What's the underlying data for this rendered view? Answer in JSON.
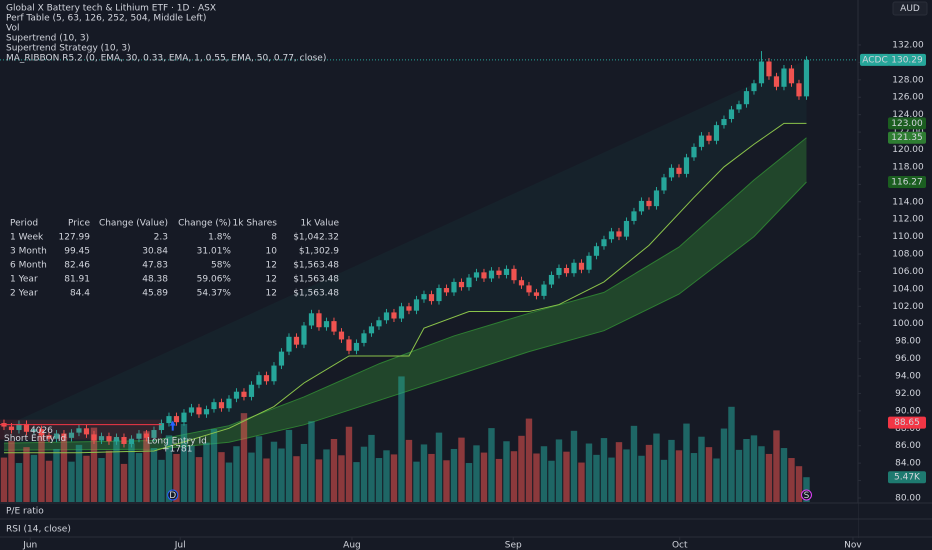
{
  "header": {
    "title": "Global X Battery tech & Lithium ETF · 1D · ASX",
    "indicators": [
      "Perf Table (5, 63, 126, 252, 504, Middle Left)",
      "Vol",
      "Supertrend (10, 3)",
      "Supertrend Strategy (10, 3)",
      "MA_RIBBON R5.2 (0, EMA, 30, 0.33, EMA, 1, 0.55, EMA, 50, 0.77, close)"
    ],
    "currency": "AUD"
  },
  "perf_table": {
    "headers": [
      "Period",
      "Price",
      "Change (Value)",
      "Change (%)",
      "1k Shares",
      "1k Value"
    ],
    "rows": [
      [
        "1 Week",
        "127.99",
        "2.3",
        "1.8%",
        "8",
        "$1,042.32"
      ],
      [
        "3 Month",
        "99.45",
        "30.84",
        "31.01%",
        "10",
        "$1,302.9"
      ],
      [
        "6 Month",
        "82.46",
        "47.83",
        "58%",
        "12",
        "$1,563.48"
      ],
      [
        "1 Year",
        "81.91",
        "48.38",
        "59.06%",
        "12",
        "$1,563.48"
      ],
      [
        "2 Year",
        "84.4",
        "45.89",
        "54.37%",
        "12",
        "$1,563.48"
      ]
    ]
  },
  "panes": [
    "P/E ratio",
    "RSI (14, close)"
  ],
  "event_markers": [
    "D",
    "S"
  ],
  "chart_data": {
    "type": "candlestick",
    "up_color": "#26a69a",
    "down_color": "#ef5350",
    "open": [
      88.6,
      88.2,
      87.8,
      88.5,
      87.6,
      87.9,
      87.2,
      86.8,
      87.4,
      86.9,
      87.5,
      88.0,
      87.3,
      86.6,
      87.1,
      86.5,
      87.0,
      86.2,
      86.8,
      87.4,
      86.9,
      87.8,
      88.6,
      89.4,
      88.7,
      89.8,
      90.4,
      89.6,
      90.2,
      91.0,
      90.3,
      91.4,
      92.2,
      91.6,
      93.0,
      94.1,
      93.4,
      95.2,
      96.8,
      98.5,
      97.6,
      99.8,
      101.2,
      99.6,
      100.3,
      99.1,
      98.2,
      96.9,
      97.8,
      98.9,
      99.7,
      100.4,
      101.3,
      100.6,
      102.0,
      101.5,
      102.8,
      103.4,
      102.6,
      104.1,
      103.6,
      104.8,
      104.2,
      105.3,
      105.9,
      105.2,
      106.1,
      105.6,
      106.3,
      105.0,
      104.4,
      103.6,
      103.2,
      104.5,
      105.6,
      106.4,
      105.8,
      107.0,
      106.2,
      107.8,
      108.9,
      109.7,
      110.6,
      110.0,
      111.8,
      112.9,
      114.1,
      113.5,
      115.3,
      116.8,
      117.9,
      117.2,
      119.1,
      120.3,
      121.6,
      121.0,
      122.8,
      123.5,
      124.6,
      125.2,
      126.7,
      127.6,
      130.1,
      128.4,
      127.2,
      129.3,
      127.6,
      126.1
    ],
    "high": [
      89.0,
      88.6,
      88.9,
      88.9,
      88.3,
      88.3,
      87.6,
      87.8,
      87.8,
      87.9,
      88.4,
      88.4,
      87.7,
      87.5,
      87.5,
      87.4,
      87.4,
      87.2,
      87.8,
      87.8,
      88.2,
      89.0,
      89.8,
      89.8,
      90.2,
      90.8,
      90.8,
      90.6,
      91.4,
      91.4,
      91.8,
      92.6,
      92.6,
      93.4,
      94.5,
      94.5,
      95.6,
      97.2,
      98.9,
      98.9,
      100.2,
      101.6,
      101.6,
      100.7,
      100.7,
      99.5,
      98.6,
      98.2,
      99.3,
      100.1,
      100.8,
      101.7,
      101.7,
      102.4,
      102.4,
      103.2,
      103.8,
      103.8,
      104.5,
      104.5,
      105.2,
      105.2,
      105.7,
      106.3,
      106.3,
      106.5,
      106.5,
      106.7,
      106.7,
      105.4,
      104.8,
      104.0,
      104.9,
      106.0,
      106.8,
      106.8,
      107.4,
      107.4,
      108.2,
      109.3,
      110.1,
      111.0,
      111.0,
      112.2,
      113.3,
      114.5,
      114.5,
      115.7,
      117.2,
      118.3,
      118.3,
      119.5,
      120.7,
      122.0,
      122.0,
      123.2,
      123.9,
      125.0,
      125.6,
      127.1,
      128.0,
      131.3,
      130.5,
      128.8,
      129.7,
      129.7,
      128.0,
      130.7
    ],
    "low": [
      87.8,
      87.4,
      87.4,
      87.2,
      87.2,
      86.8,
      86.4,
      86.4,
      86.5,
      86.5,
      87.1,
      86.9,
      86.2,
      86.2,
      86.1,
      86.1,
      85.8,
      85.8,
      86.4,
      86.5,
      86.5,
      87.4,
      88.2,
      88.3,
      88.3,
      89.4,
      89.2,
      89.2,
      89.8,
      89.9,
      89.9,
      91.0,
      91.2,
      91.2,
      92.6,
      93.0,
      93.0,
      94.8,
      96.4,
      97.2,
      97.2,
      99.4,
      99.2,
      99.2,
      98.7,
      97.8,
      96.5,
      96.5,
      97.4,
      98.5,
      99.3,
      100.0,
      100.2,
      100.2,
      101.1,
      101.1,
      102.4,
      102.2,
      102.2,
      103.2,
      103.2,
      103.8,
      103.8,
      104.9,
      104.8,
      104.8,
      105.2,
      105.2,
      104.6,
      104.0,
      103.2,
      102.8,
      102.8,
      104.1,
      105.2,
      105.4,
      105.4,
      105.8,
      105.8,
      107.4,
      108.5,
      109.3,
      109.6,
      109.6,
      111.4,
      112.5,
      113.1,
      113.1,
      114.9,
      116.4,
      116.8,
      116.8,
      118.7,
      119.9,
      120.6,
      120.6,
      122.4,
      123.1,
      124.2,
      124.8,
      126.3,
      127.2,
      128.0,
      126.8,
      126.8,
      127.2,
      125.7,
      125.7
    ],
    "close": [
      88.2,
      87.8,
      88.5,
      87.6,
      87.9,
      87.2,
      86.8,
      87.4,
      86.9,
      87.5,
      88.0,
      87.3,
      86.6,
      87.1,
      86.5,
      87.0,
      86.2,
      86.8,
      87.4,
      86.9,
      87.8,
      88.6,
      89.4,
      88.7,
      89.8,
      90.4,
      89.6,
      90.2,
      91.0,
      90.3,
      91.4,
      92.2,
      91.6,
      93.0,
      94.1,
      93.4,
      95.2,
      96.8,
      98.5,
      97.6,
      99.8,
      101.2,
      99.6,
      100.3,
      99.1,
      98.2,
      96.9,
      97.8,
      98.9,
      99.7,
      100.4,
      101.3,
      100.6,
      102.0,
      101.5,
      102.8,
      103.4,
      102.6,
      104.1,
      103.6,
      104.8,
      104.2,
      105.3,
      105.9,
      105.2,
      106.1,
      105.6,
      106.3,
      105.0,
      104.4,
      103.6,
      103.2,
      104.5,
      105.6,
      106.4,
      105.8,
      107.0,
      106.2,
      107.8,
      108.9,
      109.7,
      110.6,
      110.0,
      111.8,
      112.9,
      114.1,
      113.5,
      115.3,
      116.8,
      117.9,
      117.2,
      119.1,
      120.3,
      121.6,
      121.0,
      122.8,
      123.5,
      124.6,
      125.2,
      126.7,
      127.6,
      130.1,
      128.4,
      127.2,
      129.3,
      127.6,
      126.1,
      130.29
    ],
    "volume": {
      "values": [
        9800,
        13500,
        8600,
        12100,
        10400,
        15200,
        9100,
        11700,
        14300,
        8900,
        12600,
        10200,
        16400,
        9700,
        11300,
        13800,
        8400,
        12900,
        10800,
        15600,
        11900,
        9300,
        14700,
        10600,
        17200,
        12400,
        9900,
        13100,
        16100,
        11000,
        8700,
        12300,
        19600,
        10900,
        14500,
        9600,
        13300,
        11800,
        15900,
        10100,
        12800,
        17800,
        9400,
        11600,
        13900,
        10300,
        16600,
        8800,
        12200,
        14800,
        9700,
        11400,
        10500,
        27700,
        13700,
        8900,
        12700,
        10600,
        15300,
        9200,
        11700,
        14200,
        8600,
        12500,
        10900,
        16300,
        9500,
        13400,
        11200,
        14600,
        18400,
        10700,
        12300,
        9100,
        13800,
        11100,
        15700,
        8700,
        12900,
        10400,
        14100,
        9800,
        13200,
        11600,
        16800,
        10200,
        12600,
        15100,
        9300,
        13700,
        11400,
        17300,
        10800,
        14400,
        12100,
        9600,
        16200,
        21000,
        11500,
        13900,
        14700,
        12300,
        10600,
        15800,
        11900,
        9700,
        7900,
        5470
      ],
      "vlim": [
        0,
        30000
      ],
      "last_label": {
        "value": 5470,
        "label": "5.47K"
      }
    },
    "supertrend": {
      "color": "#8bc34a",
      "x": [
        0,
        10,
        20,
        30,
        36,
        40,
        46,
        54,
        56,
        62,
        70,
        74,
        80,
        86,
        92,
        96,
        100,
        104,
        107
      ],
      "values": [
        85.2,
        85.2,
        85.4,
        88.0,
        90.5,
        93.2,
        96.3,
        96.3,
        99.5,
        101.4,
        101.4,
        102.2,
        104.8,
        109.0,
        114.5,
        118.0,
        120.6,
        123.0,
        123.0
      ]
    },
    "ribbon": {
      "color": "#2e7d32",
      "x": [
        0,
        20,
        30,
        40,
        50,
        60,
        70,
        80,
        90,
        100,
        107
      ],
      "upper": [
        86.3,
        86.6,
        88.3,
        91.6,
        95.4,
        98.6,
        101.2,
        103.6,
        108.8,
        116.5,
        121.35
      ],
      "lower": [
        85.5,
        85.6,
        86.4,
        88.4,
        91.2,
        94.0,
        96.8,
        99.2,
        103.4,
        110.0,
        116.27
      ]
    },
    "last_price": {
      "symbol": "ACDC",
      "value": 130.29,
      "color": "#26a69a"
    },
    "price_labels": [
      {
        "value": 123,
        "label": "123.00",
        "color": "#1b5e20"
      },
      {
        "value": 121.35,
        "label": "121.35",
        "color": "#2e7d32"
      },
      {
        "value": 116.27,
        "label": "116.27",
        "color": "#1b5e20"
      },
      {
        "value": 88.65,
        "label": "88.65",
        "color": "#f23645"
      }
    ],
    "trades": {
      "short": {
        "label": "Short Entry Id",
        "qty": 4026
      },
      "long": {
        "label": "Long Entry Id",
        "profit": "+1781"
      }
    },
    "xlim": [
      -0.53,
      113.87
    ],
    "xticks": [
      {
        "value": 3.5,
        "label": "Jun"
      },
      {
        "value": 23.5,
        "label": "Jul"
      },
      {
        "value": 46.4,
        "label": "Aug"
      },
      {
        "value": 67.9,
        "label": "Sep"
      },
      {
        "value": 90.1,
        "label": "Oct"
      },
      {
        "value": 113.2,
        "label": "Nov"
      }
    ],
    "ylim": [
      79.54,
      137.16
    ],
    "yticks": [
      {
        "value": 80,
        "label": "80.00"
      },
      {
        "value": 82,
        "label": "82.00"
      },
      {
        "value": 84,
        "label": "84.00"
      },
      {
        "value": 86,
        "label": "86.00"
      },
      {
        "value": 88,
        "label": "88.00"
      },
      {
        "value": 90,
        "label": "90.00"
      },
      {
        "value": 92,
        "label": "92.00"
      },
      {
        "value": 94,
        "label": "94.00"
      },
      {
        "value": 96,
        "label": "96.00"
      },
      {
        "value": 98,
        "label": "98.00"
      },
      {
        "value": 100,
        "label": "100.00"
      },
      {
        "value": 102,
        "label": "102.00"
      },
      {
        "value": 104,
        "label": "104.00"
      },
      {
        "value": 106,
        "label": "106.00"
      },
      {
        "value": 108,
        "label": "108.00"
      },
      {
        "value": 110,
        "label": "110.00"
      },
      {
        "value": 112,
        "label": "112.00"
      },
      {
        "value": 114,
        "label": "114.00"
      },
      {
        "value": 116,
        "label": "116.00"
      },
      {
        "value": 118,
        "label": "118.00"
      },
      {
        "value": 120,
        "label": "120.00"
      },
      {
        "value": 122,
        "label": "122.00"
      },
      {
        "value": 124,
        "label": "124.00"
      },
      {
        "value": 126,
        "label": "126.00"
      },
      {
        "value": 128,
        "label": "128.00"
      },
      {
        "value": 130,
        "label": "130.00"
      },
      {
        "value": 132,
        "label": "132.00"
      }
    ]
  }
}
